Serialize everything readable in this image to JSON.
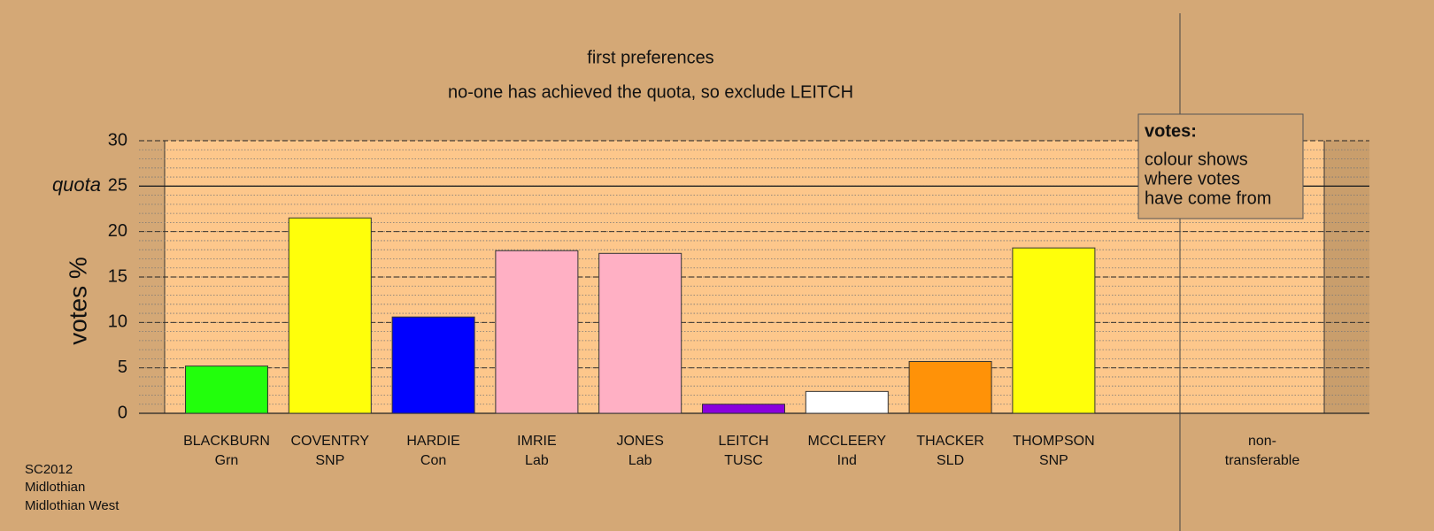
{
  "chart_data": {
    "type": "bar",
    "title": "first preferences",
    "subtitle": "no-one has achieved the quota, so exclude LEITCH",
    "y_label": "votes %",
    "categories": [
      "BLACKBURN",
      "COVENTRY",
      "HARDIE",
      "IMRIE",
      "JONES",
      "LEITCH",
      "MCCLEERY",
      "THACKER",
      "THOMPSON",
      "non-"
    ],
    "parties": [
      "Grn",
      "SNP",
      "Con",
      "Lab",
      "Lab",
      "TUSC",
      "Ind",
      "SLD",
      "SNP",
      "transferable"
    ],
    "values": [
      5.2,
      21.5,
      10.6,
      17.9,
      17.6,
      1.0,
      2.4,
      5.7,
      18.2,
      null
    ],
    "colors": [
      "#22ff0c",
      "#ffff0a",
      "#0000ff",
      "#ffb0c4",
      "#ffb0c4",
      "#8a00dd",
      "#ffffff",
      "#ff9208",
      "#ffff0a",
      null
    ],
    "ylim": [
      0,
      30
    ],
    "yticks": [
      0,
      5,
      10,
      15,
      20,
      25,
      30
    ],
    "quota": {
      "label": "quota",
      "value": 25
    },
    "legend": {
      "title": "votes:",
      "lines": [
        "colour shows",
        "where votes",
        "have come from"
      ]
    },
    "footer": [
      "SC2012",
      "Midlothian",
      "Midlothian West"
    ]
  }
}
